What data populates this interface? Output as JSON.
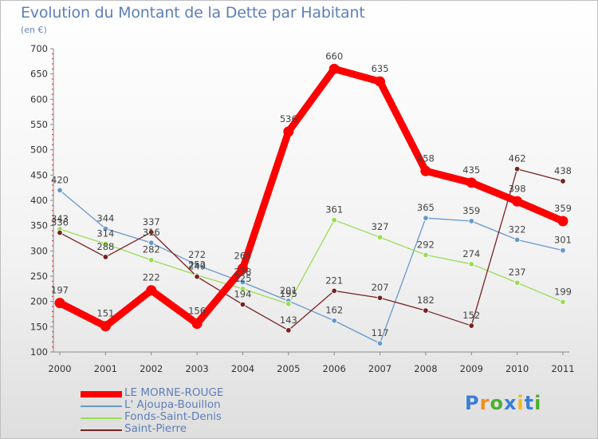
{
  "header": {
    "title": "Evolution du Montant de la Dette par Habitant",
    "subtitle": "(en €)"
  },
  "chart_data": {
    "type": "line",
    "title": "Evolution du Montant de la Dette par Habitant",
    "subtitle": "(en €)",
    "x": [
      "2000",
      "2001",
      "2002",
      "2003",
      "2004",
      "2005",
      "2006",
      "2007",
      "2008",
      "2009",
      "2010",
      "2011"
    ],
    "ylim": [
      100,
      700
    ],
    "yticks": [
      100,
      150,
      200,
      250,
      300,
      350,
      400,
      450,
      500,
      550,
      600,
      650,
      700
    ],
    "grid": false,
    "legend_position": "bottom-left",
    "series": [
      {
        "name": "LE MORNE-ROUGE",
        "color": "#ff0000",
        "emphasis": true,
        "values": [
          197,
          151,
          222,
          156,
          265,
          536,
          660,
          635,
          458,
          435,
          398,
          359
        ]
      },
      {
        "name": "L' Ajoupa-Bouillon",
        "color": "#6699cc",
        "values": [
          420,
          344,
          316,
          272,
          238,
          201,
          162,
          117,
          365,
          359,
          322,
          301
        ]
      },
      {
        "name": "Fonds-Saint-Denis",
        "color": "#99dd55",
        "values": [
          343,
          314,
          282,
          252,
          225,
          195,
          361,
          327,
          292,
          274,
          237,
          199
        ]
      },
      {
        "name": "Saint-Pierre",
        "color": "#772222",
        "values": [
          336,
          288,
          337,
          249,
          194,
          143,
          221,
          207,
          182,
          152,
          462,
          438
        ]
      }
    ]
  },
  "logo": {
    "letters": [
      {
        "char": "P",
        "color": "#3b7fd4"
      },
      {
        "char": "r",
        "color": "#f28c1a"
      },
      {
        "char": "o",
        "color": "#4caf2f"
      },
      {
        "char": "x",
        "color": "#3b7fd4"
      },
      {
        "char": "i",
        "color": "#f2b81a"
      },
      {
        "char": "t",
        "color": "#3b7fd4"
      },
      {
        "char": "i",
        "color": "#4caf2f"
      }
    ]
  }
}
